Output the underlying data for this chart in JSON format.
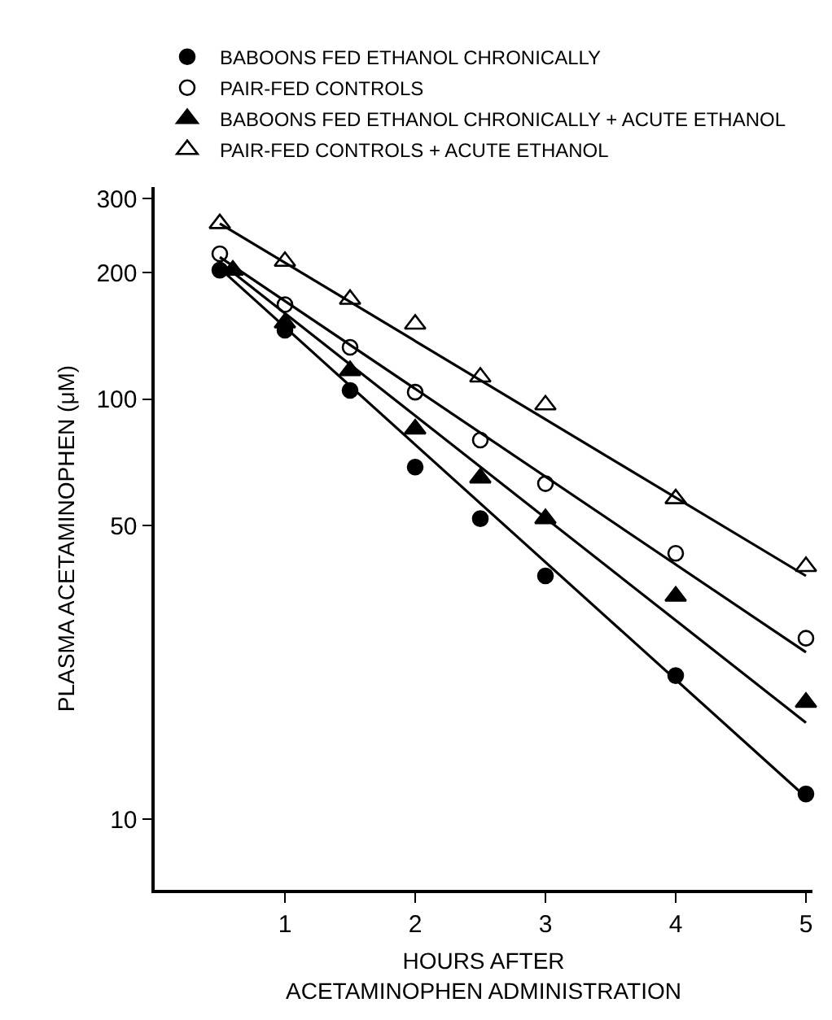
{
  "chart_data": {
    "type": "scatter",
    "xlabel": "HOURS AFTER\nACETAMINOPHEN ADMINISTRATION",
    "ylabel": "PLASMA ACETAMINOPHEN (μM)",
    "log": "y",
    "grid": false,
    "legend": "top",
    "xlim": [
      0,
      5.05
    ],
    "xticks": [
      1,
      2,
      3,
      4,
      5
    ],
    "ylim": [
      6.8,
      320
    ],
    "yticks": [
      10,
      50,
      100,
      200,
      300
    ],
    "series": [
      {
        "name": "BABOONS FED ETHANOL CHRONICALLY",
        "color": "#000000",
        "marker": "circle",
        "x": [
          0.5,
          1,
          1.5,
          2,
          2.5,
          3,
          4,
          5
        ],
        "values": [
          203,
          146,
          105,
          69,
          52,
          38,
          22,
          11.5
        ]
      },
      {
        "name": "PAIR-FED CONTROLS",
        "color": "#ffffff",
        "marker": "circle",
        "x": [
          0.5,
          1,
          1.5,
          2,
          2.5,
          3,
          4,
          5
        ],
        "values": [
          222,
          168,
          133,
          104,
          80,
          63,
          43,
          27
        ]
      },
      {
        "name": "BABOONS FED ETHANOL CHRONICALLY + ACUTE ETHANOL",
        "color": "#000000",
        "marker": "triangle",
        "x": [
          0.6,
          1,
          1.5,
          2,
          2.5,
          3,
          4,
          5
        ],
        "values": [
          203,
          152,
          117,
          85,
          65,
          52,
          34,
          19
        ]
      },
      {
        "name": "PAIR-FED CONTROLS + ACUTE ETHANOL",
        "color": "#ffffff",
        "marker": "triangle",
        "x": [
          0.5,
          1,
          1.5,
          2,
          2.5,
          3,
          4,
          5
        ],
        "values": [
          262,
          213,
          173,
          151,
          113,
          97,
          58,
          40
        ]
      },
      {
        "type": "line",
        "color": "#000000",
        "marker": "none",
        "x": [
          0.5,
          5
        ],
        "values": [
          205,
          11.3
        ]
      },
      {
        "type": "line",
        "color": "#000000",
        "marker": "none",
        "x": [
          0.5,
          5
        ],
        "values": [
          218,
          25
        ]
      },
      {
        "type": "line",
        "color": "#000000",
        "marker": "none",
        "x": [
          0.5,
          5
        ],
        "values": [
          212,
          17
        ]
      },
      {
        "type": "line",
        "color": "#000000",
        "marker": "none",
        "x": [
          0.5,
          5
        ],
        "values": [
          262,
          38
        ]
      }
    ]
  }
}
